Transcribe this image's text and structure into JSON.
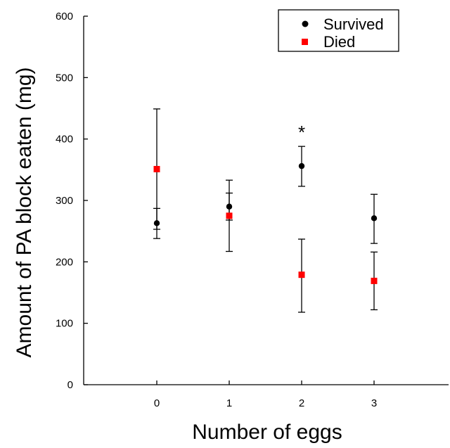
{
  "chart_data": {
    "type": "scatter",
    "xlabel": "Number of eggs",
    "ylabel": "Amount of PA block eaten (mg)",
    "xlim": [
      -1.2,
      3.9
    ],
    "ylim": [
      0,
      600
    ],
    "x_ticks": [
      0,
      1,
      2,
      3
    ],
    "y_ticks": [
      0,
      100,
      200,
      300,
      400,
      500,
      600
    ],
    "grid": false,
    "legend_position": "top-right",
    "series": [
      {
        "name": "Survived",
        "marker": "circle",
        "color": "#000000",
        "points": [
          {
            "x": 0,
            "y": 263,
            "err_low": 238,
            "err_high": 287
          },
          {
            "x": 1,
            "y": 290,
            "err_low": 268,
            "err_high": 312
          },
          {
            "x": 2,
            "y": 356,
            "err_low": 323,
            "err_high": 388
          },
          {
            "x": 3,
            "y": 271,
            "err_low": 230,
            "err_high": 310
          }
        ]
      },
      {
        "name": "Died",
        "marker": "square",
        "color": "#ff0000",
        "points": [
          {
            "x": 0,
            "y": 351,
            "err_low": 253,
            "err_high": 449
          },
          {
            "x": 1,
            "y": 275,
            "err_low": 217,
            "err_high": 333
          },
          {
            "x": 2,
            "y": 179,
            "err_low": 118,
            "err_high": 237
          },
          {
            "x": 3,
            "y": 169,
            "err_low": 122,
            "err_high": 216
          }
        ]
      }
    ],
    "annotations": [
      {
        "text": "*",
        "x": 2,
        "y": 420
      }
    ]
  }
}
